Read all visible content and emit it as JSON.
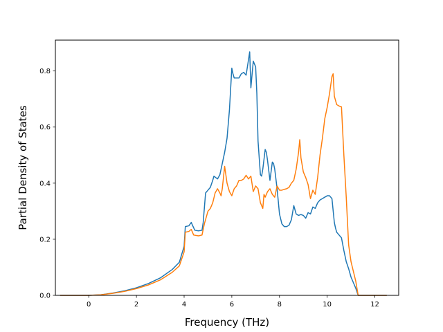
{
  "chart_data": {
    "type": "line",
    "title": "",
    "xlabel": "Frequency (THz)",
    "ylabel": "Partial Density of States",
    "xlim": [
      -1.4,
      13.0
    ],
    "ylim": [
      0.0,
      0.91
    ],
    "xticks": [
      0,
      2,
      4,
      6,
      8,
      10,
      12
    ],
    "xtick_labels": [
      "0",
      "2",
      "4",
      "6",
      "8",
      "10",
      "12"
    ],
    "yticks": [
      0.0,
      0.2,
      0.4,
      0.6,
      0.8
    ],
    "ytick_labels": [
      "0.0",
      "0.2",
      "0.4",
      "0.6",
      "0.8"
    ],
    "grid": false,
    "legend": "none",
    "series": [
      {
        "color": "#1f77b4",
        "x": [
          -1.2,
          -0.5,
          0.0,
          0.5,
          1.0,
          1.5,
          2.0,
          2.5,
          3.0,
          3.5,
          3.8,
          4.0,
          4.05,
          4.2,
          4.3,
          4.35,
          4.45,
          4.6,
          4.75,
          4.8,
          4.9,
          5.0,
          5.1,
          5.2,
          5.25,
          5.4,
          5.5,
          5.6,
          5.7,
          5.8,
          5.9,
          6.0,
          6.05,
          6.1,
          6.2,
          6.3,
          6.4,
          6.5,
          6.6,
          6.7,
          6.75,
          6.8,
          6.9,
          7.0,
          7.05,
          7.1,
          7.2,
          7.25,
          7.3,
          7.4,
          7.45,
          7.5,
          7.6,
          7.7,
          7.75,
          7.8,
          7.9,
          8.0,
          8.1,
          8.2,
          8.3,
          8.4,
          8.5,
          8.6,
          8.7,
          8.8,
          8.9,
          9.0,
          9.1,
          9.2,
          9.3,
          9.4,
          9.5,
          9.6,
          9.7,
          9.8,
          9.9,
          10.0,
          10.1,
          10.2,
          10.3,
          10.35,
          10.4,
          10.5,
          10.6,
          10.7,
          10.8,
          10.9,
          11.0,
          11.1,
          11.2,
          11.3,
          11.5,
          12.5
        ],
        "y": [
          0.0,
          0.0,
          0.0,
          0.002,
          0.008,
          0.016,
          0.027,
          0.042,
          0.062,
          0.092,
          0.118,
          0.175,
          0.245,
          0.248,
          0.26,
          0.25,
          0.232,
          0.23,
          0.232,
          0.26,
          0.365,
          0.375,
          0.385,
          0.41,
          0.425,
          0.415,
          0.43,
          0.47,
          0.51,
          0.56,
          0.66,
          0.81,
          0.79,
          0.775,
          0.775,
          0.775,
          0.79,
          0.795,
          0.785,
          0.84,
          0.868,
          0.74,
          0.835,
          0.815,
          0.72,
          0.55,
          0.43,
          0.425,
          0.45,
          0.52,
          0.51,
          0.48,
          0.41,
          0.475,
          0.47,
          0.45,
          0.38,
          0.29,
          0.255,
          0.245,
          0.245,
          0.25,
          0.27,
          0.32,
          0.29,
          0.285,
          0.288,
          0.285,
          0.275,
          0.295,
          0.29,
          0.315,
          0.31,
          0.33,
          0.34,
          0.345,
          0.35,
          0.355,
          0.355,
          0.345,
          0.26,
          0.24,
          0.225,
          0.215,
          0.205,
          0.16,
          0.12,
          0.095,
          0.065,
          0.045,
          0.025,
          0.0,
          0.0,
          0.0
        ]
      },
      {
        "color": "#ff7f0e",
        "x": [
          -1.2,
          -0.5,
          0.0,
          0.5,
          1.0,
          1.5,
          2.0,
          2.5,
          3.0,
          3.5,
          3.8,
          4.0,
          4.05,
          4.2,
          4.3,
          4.4,
          4.6,
          4.75,
          4.85,
          5.0,
          5.1,
          5.2,
          5.3,
          5.4,
          5.5,
          5.55,
          5.6,
          5.7,
          5.8,
          5.9,
          6.0,
          6.1,
          6.2,
          6.3,
          6.4,
          6.5,
          6.6,
          6.7,
          6.75,
          6.8,
          6.9,
          7.0,
          7.1,
          7.2,
          7.3,
          7.35,
          7.4,
          7.5,
          7.6,
          7.7,
          7.8,
          7.9,
          8.0,
          8.1,
          8.2,
          8.3,
          8.4,
          8.5,
          8.6,
          8.7,
          8.8,
          8.85,
          8.9,
          9.0,
          9.1,
          9.2,
          9.3,
          9.35,
          9.4,
          9.5,
          9.6,
          9.7,
          9.8,
          9.9,
          10.0,
          10.1,
          10.2,
          10.25,
          10.3,
          10.4,
          10.5,
          10.6,
          10.7,
          10.8,
          10.9,
          11.0,
          11.2,
          11.3,
          11.5,
          12.5
        ],
        "y": [
          0.0,
          0.0,
          0.0,
          0.002,
          0.007,
          0.014,
          0.024,
          0.037,
          0.055,
          0.082,
          0.105,
          0.155,
          0.225,
          0.228,
          0.235,
          0.215,
          0.212,
          0.215,
          0.255,
          0.3,
          0.31,
          0.33,
          0.365,
          0.38,
          0.365,
          0.355,
          0.38,
          0.46,
          0.4,
          0.37,
          0.355,
          0.38,
          0.39,
          0.41,
          0.41,
          0.415,
          0.428,
          0.415,
          0.42,
          0.425,
          0.37,
          0.39,
          0.38,
          0.33,
          0.31,
          0.36,
          0.35,
          0.37,
          0.38,
          0.36,
          0.35,
          0.39,
          0.375,
          0.375,
          0.378,
          0.38,
          0.385,
          0.4,
          0.41,
          0.45,
          0.51,
          0.555,
          0.49,
          0.44,
          0.42,
          0.395,
          0.345,
          0.36,
          0.375,
          0.36,
          0.42,
          0.5,
          0.56,
          0.63,
          0.67,
          0.72,
          0.78,
          0.79,
          0.71,
          0.68,
          0.675,
          0.672,
          0.5,
          0.35,
          0.18,
          0.12,
          0.05,
          0.0,
          0.0,
          0.0
        ]
      }
    ]
  }
}
